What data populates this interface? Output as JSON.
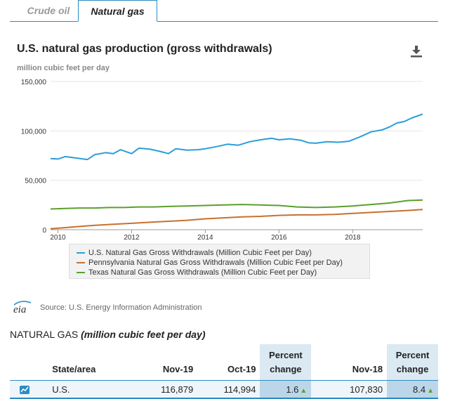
{
  "tabs": [
    {
      "label": "Crude oil",
      "active": false
    },
    {
      "label": "Natural gas",
      "active": true
    }
  ],
  "chart_data": {
    "type": "line",
    "title": "U.S. natural gas production (gross withdrawals)",
    "ylabel": "million cubic feet per day",
    "ylim": [
      0,
      150000
    ],
    "yticks": [
      0,
      50000,
      100000,
      150000
    ],
    "ytick_labels": [
      "0",
      "50,000",
      "100,000",
      "150,000"
    ],
    "xlim": [
      2009.8,
      2019.9
    ],
    "xticks": [
      2010,
      2012,
      2014,
      2016,
      2018
    ],
    "xtick_labels": [
      "2010",
      "2012",
      "2014",
      "2016",
      "2018"
    ],
    "grid": "horizontal",
    "legend_position": "bottom",
    "series": [
      {
        "name": "U.S. Natural Gas Gross Withdrawals (Million Cubic Feet per Day)",
        "color": "#2b9ed8",
        "points": [
          [
            2009.8,
            72000
          ],
          [
            2010.0,
            71500
          ],
          [
            2010.2,
            74000
          ],
          [
            2010.5,
            72500
          ],
          [
            2010.8,
            71000
          ],
          [
            2011.0,
            76000
          ],
          [
            2011.3,
            78000
          ],
          [
            2011.5,
            77000
          ],
          [
            2011.7,
            81000
          ],
          [
            2012.0,
            77000
          ],
          [
            2012.2,
            82500
          ],
          [
            2012.5,
            81500
          ],
          [
            2012.8,
            79000
          ],
          [
            2013.0,
            77000
          ],
          [
            2013.2,
            82000
          ],
          [
            2013.5,
            80500
          ],
          [
            2013.8,
            81000
          ],
          [
            2014.0,
            82000
          ],
          [
            2014.3,
            84000
          ],
          [
            2014.6,
            86500
          ],
          [
            2014.9,
            85500
          ],
          [
            2015.2,
            89000
          ],
          [
            2015.5,
            91000
          ],
          [
            2015.8,
            92500
          ],
          [
            2016.0,
            91000
          ],
          [
            2016.3,
            92000
          ],
          [
            2016.6,
            90500
          ],
          [
            2016.8,
            88000
          ],
          [
            2017.0,
            87500
          ],
          [
            2017.3,
            89000
          ],
          [
            2017.6,
            88500
          ],
          [
            2017.9,
            89500
          ],
          [
            2018.2,
            94000
          ],
          [
            2018.5,
            99000
          ],
          [
            2018.8,
            101000
          ],
          [
            2019.0,
            104000
          ],
          [
            2019.2,
            108000
          ],
          [
            2019.4,
            109500
          ],
          [
            2019.6,
            113000
          ],
          [
            2019.9,
            117000
          ]
        ]
      },
      {
        "name": "Pennsylvania Natural Gas Gross Withdrawals (Million Cubic Feet per Day)",
        "color": "#c8702f",
        "points": [
          [
            2009.8,
            1000
          ],
          [
            2010.0,
            1500
          ],
          [
            2010.5,
            3000
          ],
          [
            2011.0,
            4500
          ],
          [
            2011.5,
            5500
          ],
          [
            2012.0,
            6500
          ],
          [
            2012.5,
            7500
          ],
          [
            2013.0,
            8500
          ],
          [
            2013.5,
            9500
          ],
          [
            2014.0,
            11000
          ],
          [
            2014.5,
            12000
          ],
          [
            2015.0,
            13000
          ],
          [
            2015.5,
            13500
          ],
          [
            2016.0,
            14500
          ],
          [
            2016.5,
            15000
          ],
          [
            2017.0,
            15000
          ],
          [
            2017.5,
            15500
          ],
          [
            2018.0,
            16500
          ],
          [
            2018.5,
            17500
          ],
          [
            2019.0,
            18500
          ],
          [
            2019.5,
            19500
          ],
          [
            2019.9,
            20500
          ]
        ]
      },
      {
        "name": "Texas Natural Gas Gross Withdrawals (Million Cubic Feet per Day)",
        "color": "#5aa02c",
        "points": [
          [
            2009.8,
            21000
          ],
          [
            2010.2,
            21500
          ],
          [
            2010.6,
            22000
          ],
          [
            2011.0,
            22000
          ],
          [
            2011.4,
            22500
          ],
          [
            2011.8,
            22500
          ],
          [
            2012.2,
            23000
          ],
          [
            2012.6,
            23000
          ],
          [
            2013.0,
            23500
          ],
          [
            2013.5,
            24000
          ],
          [
            2014.0,
            24500
          ],
          [
            2014.5,
            25000
          ],
          [
            2015.0,
            25500
          ],
          [
            2015.5,
            25000
          ],
          [
            2016.0,
            24500
          ],
          [
            2016.5,
            23000
          ],
          [
            2017.0,
            22500
          ],
          [
            2017.5,
            23000
          ],
          [
            2018.0,
            24000
          ],
          [
            2018.5,
            25500
          ],
          [
            2019.0,
            27000
          ],
          [
            2019.5,
            29500
          ],
          [
            2019.9,
            30000
          ]
        ]
      }
    ]
  },
  "download_icon": "download-icon",
  "source": {
    "logo_text": "eia",
    "text": "Source: U.S. Energy Information Administration"
  },
  "table_section": {
    "title_main": "NATURAL GAS",
    "title_italic": "(million cubic feet per day)"
  },
  "table": {
    "headers": {
      "state": "State/area",
      "nov19": "Nov-19",
      "oct19": "Oct-19",
      "pct1_line1": "Percent",
      "pct1_line2": "change",
      "nov18": "Nov-18",
      "pct2_line1": "Percent",
      "pct2_line2": "change"
    },
    "rows": [
      {
        "icon": "line-chart-icon",
        "state": "U.S.",
        "nov19": "116,879",
        "oct19": "114,994",
        "pct1": "1.6",
        "nov18": "107,830",
        "pct2": "8.4",
        "arrow": "▲"
      }
    ]
  },
  "colors": {
    "accent": "#2b8cc4",
    "us_line": "#2b9ed8",
    "pa_line": "#c8702f",
    "tx_line": "#5aa02c"
  }
}
